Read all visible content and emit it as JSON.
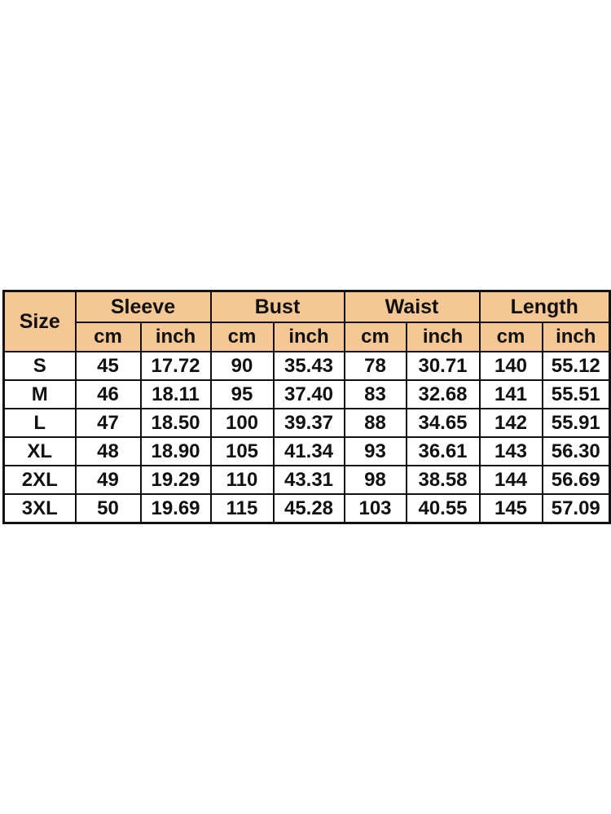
{
  "page": {
    "background_color": "#ffffff"
  },
  "chart_data": {
    "type": "table",
    "corner_header": "Size",
    "group_headers": [
      "Sleeve",
      "Bust",
      "Waist",
      "Length"
    ],
    "unit_row": [
      "cm",
      "inch",
      "cm",
      "inch",
      "cm",
      "inch",
      "cm",
      "inch"
    ],
    "rows": [
      [
        "S",
        "45",
        "17.72",
        "90",
        "35.43",
        "78",
        "30.71",
        "140",
        "55.12"
      ],
      [
        "M",
        "46",
        "18.11",
        "95",
        "37.40",
        "83",
        "32.68",
        "141",
        "55.51"
      ],
      [
        "L",
        "47",
        "18.50",
        "100",
        "39.37",
        "88",
        "34.65",
        "142",
        "55.91"
      ],
      [
        "XL",
        "48",
        "18.90",
        "105",
        "41.34",
        "93",
        "36.61",
        "143",
        "56.30"
      ],
      [
        "2XL",
        "49",
        "19.29",
        "110",
        "43.31",
        "98",
        "38.58",
        "144",
        "56.69"
      ],
      [
        "3XL",
        "50",
        "19.69",
        "115",
        "45.28",
        "103",
        "40.55",
        "145",
        "57.09"
      ]
    ],
    "styles": {
      "header_bg": "#f5c795",
      "body_bg": "#ffffff",
      "border_color": "#111111",
      "text_color": "#111111"
    }
  }
}
